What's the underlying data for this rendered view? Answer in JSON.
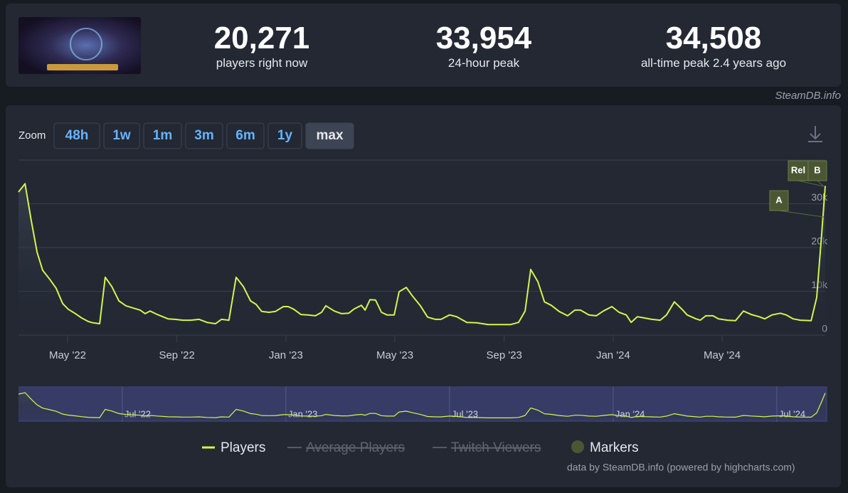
{
  "header": {
    "stats": [
      {
        "value": "20,271",
        "label": "players right now"
      },
      {
        "value": "33,954",
        "label": "24-hour peak"
      },
      {
        "value": "34,508",
        "label": "all-time peak 2.4 years ago"
      }
    ],
    "source": "SteamDB.info"
  },
  "controls": {
    "zoom_label": "Zoom",
    "zoom_options": [
      "48h",
      "1w",
      "1m",
      "3m",
      "6m",
      "1y",
      "max"
    ],
    "active": "max"
  },
  "chart_data": {
    "type": "line",
    "x": [
      2022.183,
      2022.203,
      2022.222,
      2022.24,
      2022.257,
      2022.279,
      2022.298,
      2022.318,
      2022.335,
      2022.357,
      2022.376,
      2022.396,
      2022.411,
      2022.431,
      2022.448,
      2022.468,
      2022.49,
      2022.511,
      2022.533,
      2022.555,
      2022.57,
      2022.585,
      2022.607,
      2022.64,
      2022.661,
      2022.685,
      2022.709,
      2022.735,
      2022.759,
      2022.785,
      2022.803,
      2022.826,
      2022.848,
      2022.87,
      2022.892,
      2022.909,
      2022.926,
      2022.948,
      2022.968,
      2022.992,
      2023.007,
      2023.024,
      2023.046,
      2023.068,
      2023.09,
      2023.109,
      2023.122,
      2023.148,
      2023.17,
      2023.192,
      2023.209,
      2023.231,
      2023.242,
      2023.257,
      2023.274,
      2023.292,
      2023.309,
      2023.331,
      2023.346,
      2023.368,
      2023.387,
      2023.411,
      2023.433,
      2023.457,
      2023.474,
      2023.5,
      2023.522,
      2023.553,
      2023.583,
      2023.618,
      2023.648,
      2023.687,
      2023.711,
      2023.731,
      2023.748,
      2023.77,
      2023.79,
      2023.811,
      2023.835,
      2023.861,
      2023.883,
      2023.9,
      2023.926,
      2023.948,
      2023.97,
      2023.996,
      2024.018,
      2024.04,
      2024.055,
      2024.074,
      2024.096,
      2024.118,
      2024.144,
      2024.163,
      2024.187,
      2024.209,
      2024.226,
      2024.253,
      2024.266,
      2024.283,
      2024.305,
      2024.322,
      2024.35,
      2024.374,
      2024.398,
      2024.422,
      2024.446,
      2024.463,
      2024.485,
      2024.511,
      2024.529,
      2024.55,
      2024.572,
      2024.605,
      2024.622,
      2024.637,
      2024.648
    ],
    "series": [
      {
        "name": "Players",
        "color": "#d4f54c",
        "values": [
          32700,
          34600,
          26200,
          18900,
          14800,
          12700,
          10700,
          7200,
          5900,
          4900,
          3900,
          3100,
          2800,
          2600,
          13200,
          11100,
          7800,
          6700,
          6200,
          5700,
          4900,
          5500,
          4700,
          3700,
          3600,
          3400,
          3400,
          3600,
          2900,
          2600,
          3600,
          3400,
          13200,
          11100,
          7800,
          7000,
          5400,
          5200,
          5400,
          6500,
          6500,
          5900,
          4700,
          4600,
          4400,
          5200,
          6700,
          5500,
          4900,
          5000,
          6000,
          6800,
          5700,
          8100,
          8000,
          5200,
          4600,
          4600,
          9900,
          10900,
          8900,
          6700,
          4100,
          3600,
          3600,
          4600,
          4200,
          2900,
          2800,
          2400,
          2400,
          2400,
          2900,
          5500,
          15000,
          12200,
          7600,
          6800,
          5400,
          4400,
          5700,
          5700,
          4600,
          4400,
          5500,
          6500,
          5200,
          4600,
          2900,
          4200,
          3900,
          3600,
          3400,
          4600,
          7600,
          6000,
          4600,
          3700,
          3400,
          4400,
          4400,
          3700,
          3400,
          3300,
          5500,
          4700,
          4200,
          3700,
          4600,
          5000,
          4600,
          3700,
          3400,
          3300,
          8600,
          22900,
          34100
        ]
      }
    ],
    "hidden_series": [
      "Average Players",
      "Twitch Viewers"
    ],
    "markers_label": "Markers",
    "markers": [
      "A",
      "Rel",
      "B"
    ],
    "xlim": [
      2022.183,
      2024.648
    ],
    "xticks": [
      {
        "value": 2022.333,
        "label": "May '22"
      },
      {
        "value": 2022.667,
        "label": "Sep '22"
      },
      {
        "value": 2023,
        "label": "Jan '23"
      },
      {
        "value": 2023.333,
        "label": "May '23"
      },
      {
        "value": 2023.667,
        "label": "Sep '23"
      },
      {
        "value": 2024,
        "label": "Jan '24"
      },
      {
        "value": 2024.333,
        "label": "May '24"
      }
    ],
    "ylim": [
      0,
      40000
    ],
    "yticks": [
      0,
      {
        "value": 10000,
        "label": "10k"
      },
      {
        "value": 20000,
        "label": "20k"
      },
      {
        "value": 30000,
        "label": "30k"
      }
    ],
    "grid": true,
    "navigator_xticks": [
      {
        "value": 2022.5,
        "label": "Jul '22"
      },
      {
        "value": 2023,
        "label": "Jan '23"
      },
      {
        "value": 2023.5,
        "label": "Jul '23"
      },
      {
        "value": 2024,
        "label": "Jan '24"
      },
      {
        "value": 2024.5,
        "label": "Jul '24"
      }
    ],
    "credits": "data by SteamDB.info (powered by highcharts.com)"
  }
}
